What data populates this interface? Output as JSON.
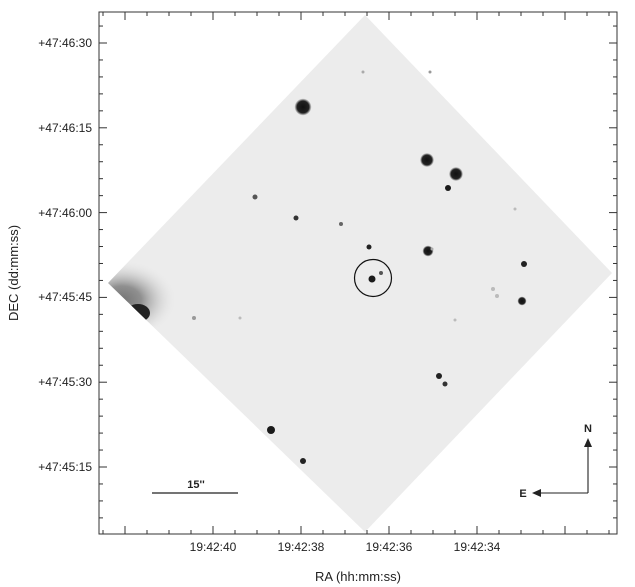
{
  "figure": {
    "xlabel": "RA (hh:mm:ss)",
    "ylabel": "DEC (dd:mm:ss)",
    "x_ticks": [
      "19:42:40",
      "19:42:38",
      "19:42:36",
      "19:42:34"
    ],
    "y_ticks": [
      "+47:46:30",
      "+47:46:15",
      "+47:46:00",
      "+47:45:45",
      "+47:45:30",
      "+47:45:15"
    ],
    "scale_bar_label": "15''",
    "compass": {
      "north": "N",
      "east": "E"
    },
    "colors": {
      "frame": "#333333",
      "image_background": "#ececec",
      "stars": "#111111"
    }
  }
}
